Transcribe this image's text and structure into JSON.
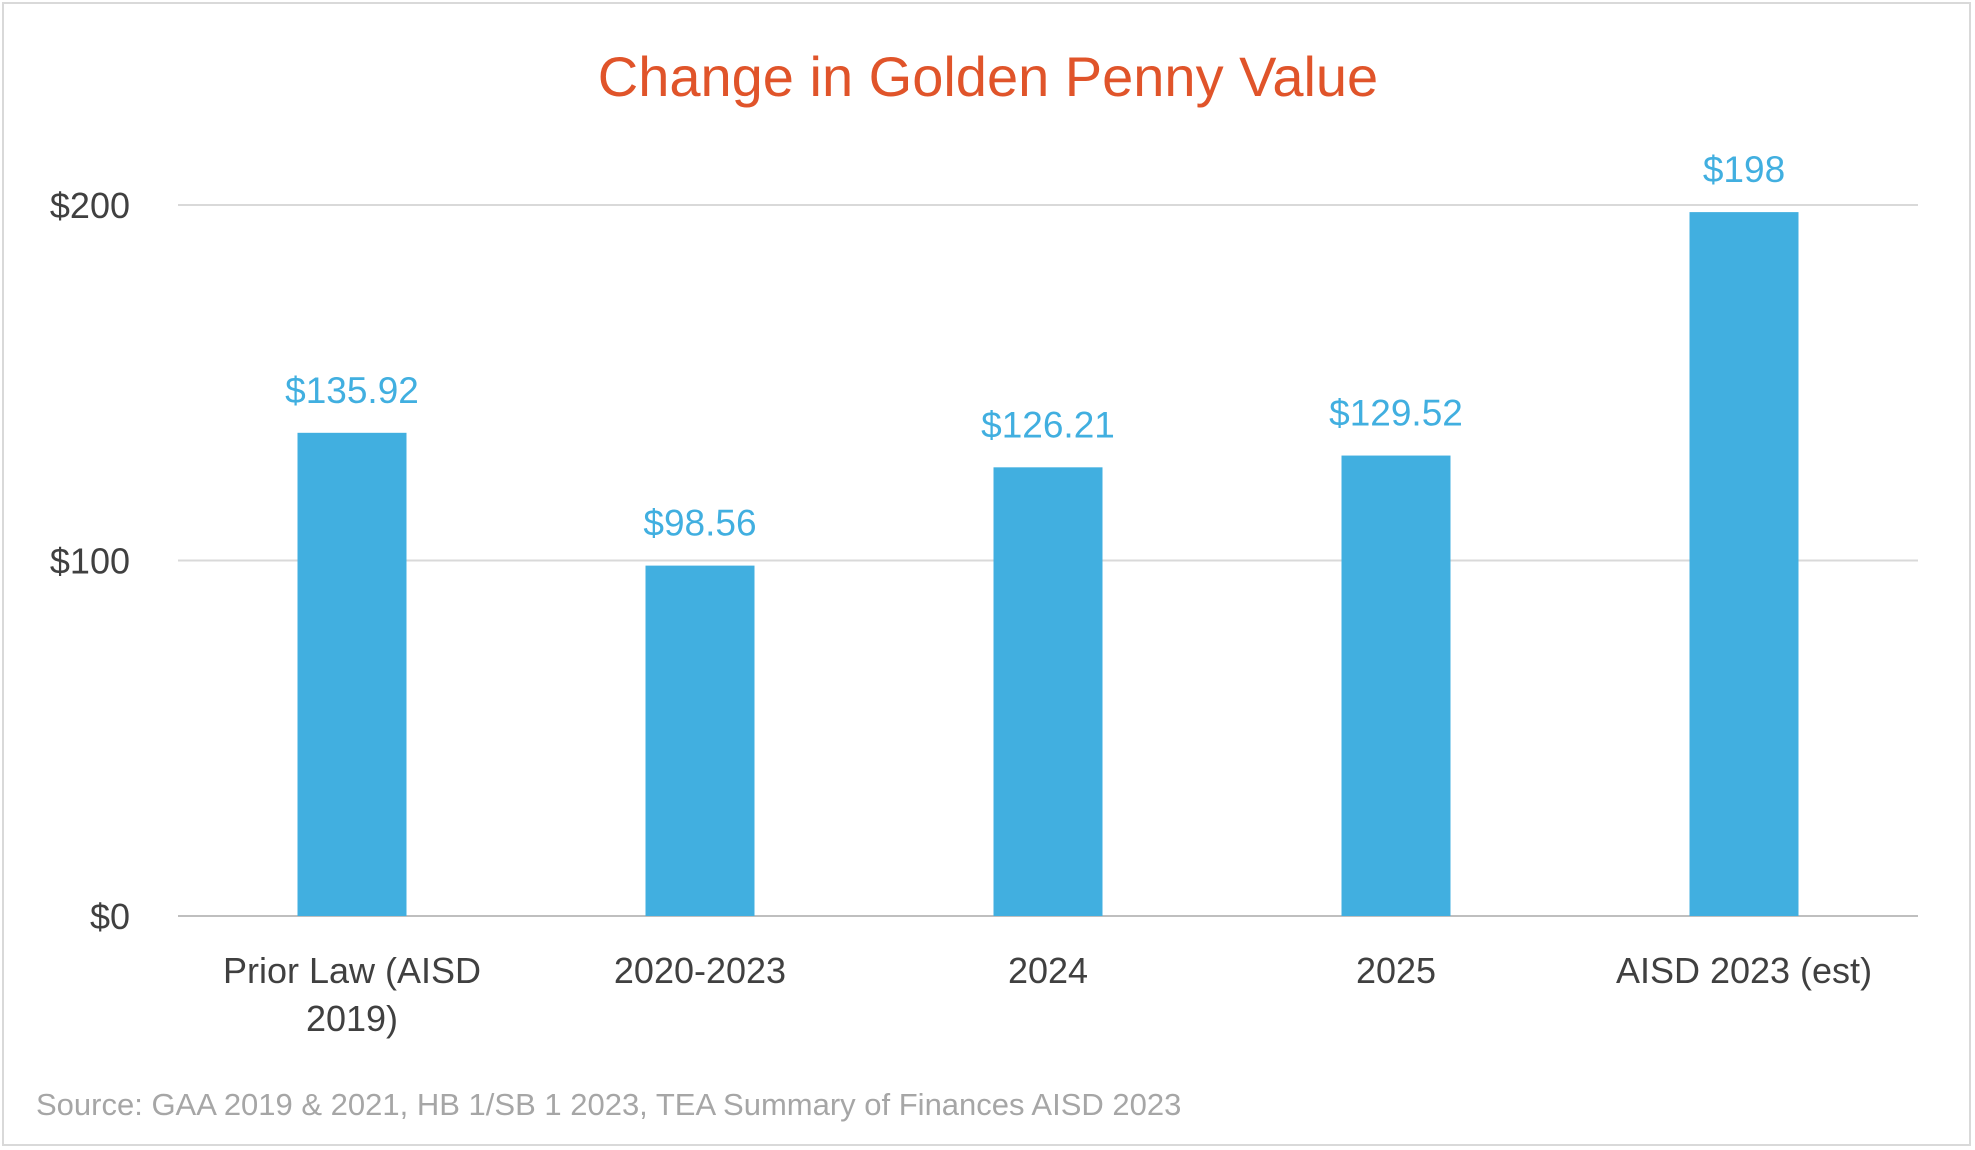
{
  "chart_data": {
    "type": "bar",
    "title": "Change in Golden Penny Value",
    "categories": [
      [
        "Prior Law (AISD",
        "2019)"
      ],
      [
        "2020-2023"
      ],
      [
        "2024"
      ],
      [
        "2025"
      ],
      [
        "AISD 2023 (est)"
      ]
    ],
    "values": [
      135.92,
      98.56,
      126.21,
      129.52,
      198
    ],
    "data_labels": [
      "$135.92",
      "$98.56",
      "$126.21",
      "$129.52",
      "$198"
    ],
    "ylim": [
      0,
      200
    ],
    "yticks": [
      0,
      100,
      200
    ],
    "ytick_labels": [
      "$0",
      "$100",
      "$200"
    ],
    "xlabel": "",
    "ylabel": "",
    "grid": true,
    "legend": "none",
    "bar_color": "#41afe0",
    "title_color": "#e0542a",
    "source": "Source: GAA 2019 & 2021, HB 1/SB 1 2023, TEA Summary of Finances AISD 2023"
  }
}
